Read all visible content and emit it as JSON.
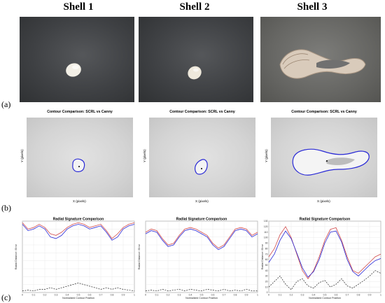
{
  "columns": [
    "Shell 1",
    "Shell 2",
    "Shell 3"
  ],
  "row_labels": {
    "a": "(a)",
    "b": "(b)",
    "c": "(c)"
  },
  "contour": {
    "title": "Contour Comparison: SCRL vs Canny",
    "xlabel": "X (pixels)",
    "ylabel": "Y (pixels)"
  },
  "colors": {
    "scrl": "#2a2ad6",
    "canny": "#d24b4b",
    "diff": "#222222"
  },
  "chart_data": [
    {
      "type": "line",
      "title": "Radial Signature Comparison",
      "xlabel": "Normalized Contour Position",
      "ylabel": "Radial Distance / Error",
      "xlim": [
        0,
        1
      ],
      "ylim": [
        0,
        45
      ],
      "x_ticks": [
        "0",
        "0.1",
        "0.2",
        "0.3",
        "0.4",
        "0.5",
        "0.6",
        "0.7",
        "0.8",
        "0.9",
        "1"
      ],
      "y_ticks": [],
      "x": [
        0,
        0.05,
        0.1,
        0.15,
        0.2,
        0.25,
        0.3,
        0.35,
        0.4,
        0.45,
        0.5,
        0.55,
        0.6,
        0.65,
        0.7,
        0.75,
        0.8,
        0.85,
        0.9,
        0.95,
        1
      ],
      "series": [
        {
          "values": [
            44,
            40,
            41,
            43,
            41,
            37,
            36,
            38,
            41,
            43,
            44,
            43,
            41,
            42,
            43,
            39,
            34,
            37,
            41,
            43,
            44
          ]
        },
        {
          "values": [
            43,
            39,
            40,
            42,
            40,
            35,
            34,
            36,
            40,
            42,
            43,
            42,
            40,
            41,
            42,
            38,
            33,
            35,
            40,
            42,
            43
          ]
        },
        {
          "values": [
            1,
            1.5,
            1,
            2,
            2,
            3,
            2,
            3,
            4,
            5,
            6,
            5,
            4,
            3,
            2,
            3,
            2,
            3,
            2,
            1.5,
            1
          ]
        }
      ]
    },
    {
      "type": "line",
      "title": "Radial Signature Comparison",
      "xlabel": "Normalized Contour Position",
      "ylabel": "Radial Distance / Error",
      "xlim": [
        0,
        1
      ],
      "ylim": [
        0,
        45
      ],
      "x_ticks": [
        "0",
        "0.1",
        "0.2",
        "0.3",
        "0.4",
        "0.5",
        "0.6",
        "0.7",
        "0.8",
        "0.9",
        "1"
      ],
      "y_ticks": [],
      "x": [
        0,
        0.05,
        0.1,
        0.15,
        0.2,
        0.25,
        0.3,
        0.35,
        0.4,
        0.45,
        0.5,
        0.55,
        0.6,
        0.65,
        0.7,
        0.75,
        0.8,
        0.85,
        0.9,
        0.95,
        1
      ],
      "series": [
        {
          "values": [
            38,
            40,
            39,
            34,
            30,
            31,
            36,
            40,
            41,
            40,
            38,
            36,
            31,
            28,
            30,
            35,
            40,
            41,
            40,
            36,
            38
          ]
        },
        {
          "values": [
            37,
            39,
            38,
            33,
            29,
            30,
            35,
            39,
            40,
            39,
            37,
            35,
            30,
            27,
            29,
            34,
            39,
            40,
            39,
            35,
            37
          ]
        },
        {
          "values": [
            1,
            1.5,
            1,
            2,
            1,
            1.5,
            2,
            1,
            2,
            1.5,
            1,
            2,
            1.5,
            1,
            2,
            1,
            1.5,
            1,
            2,
            1,
            1
          ]
        }
      ]
    },
    {
      "type": "line",
      "title": "Radial Signature Comparison",
      "xlabel": "Normalized Contour Position",
      "ylabel": "Radial Distance / Error",
      "xlim": [
        0,
        1
      ],
      "ylim": [
        0,
        130
      ],
      "x_ticks": [
        "0",
        "0.1",
        "0.2",
        "0.3",
        "0.4",
        "0.5",
        "0.6",
        "0.7",
        "0.8",
        "0.9",
        "1"
      ],
      "y_ticks": [
        "0",
        "10",
        "20",
        "30",
        "40",
        "50",
        "60",
        "70",
        "80",
        "90",
        "100",
        "110",
        "120",
        "130"
      ],
      "x": [
        0,
        0.05,
        0.1,
        0.15,
        0.2,
        0.25,
        0.3,
        0.35,
        0.4,
        0.45,
        0.5,
        0.55,
        0.6,
        0.65,
        0.7,
        0.75,
        0.8,
        0.85,
        0.9,
        0.95,
        1
      ],
      "series": [
        {
          "values": [
            65,
            80,
            105,
            120,
            100,
            70,
            40,
            25,
            40,
            65,
            95,
            115,
            118,
            95,
            65,
            40,
            35,
            45,
            55,
            65,
            70
          ]
        },
        {
          "values": [
            55,
            70,
            95,
            112,
            98,
            72,
            45,
            28,
            38,
            60,
            90,
            110,
            112,
            92,
            60,
            38,
            30,
            40,
            50,
            58,
            62
          ]
        },
        {
          "values": [
            10,
            20,
            30,
            15,
            5,
            20,
            25,
            12,
            8,
            18,
            22,
            10,
            15,
            25,
            12,
            8,
            15,
            22,
            30,
            40,
            35
          ]
        }
      ]
    }
  ]
}
